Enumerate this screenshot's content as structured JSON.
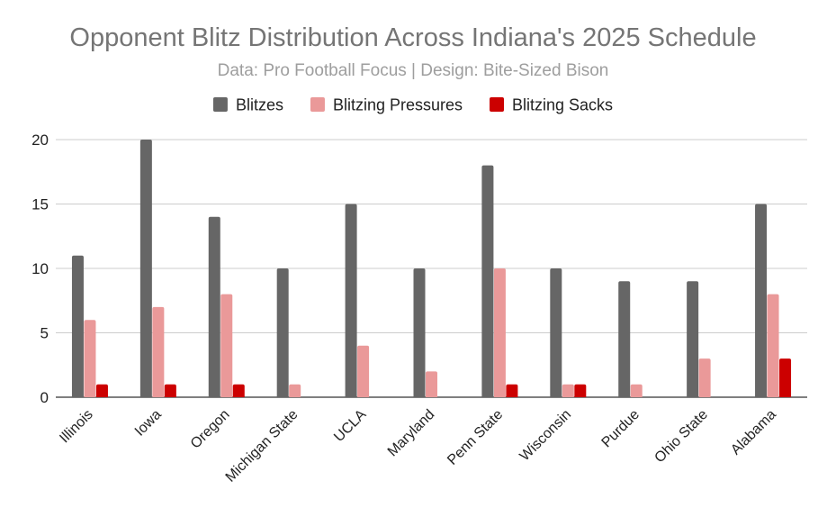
{
  "chart_data": {
    "type": "bar",
    "title": "Opponent Blitz Distribution Across Indiana's 2025 Schedule",
    "subtitle": "Data: Pro Football Focus | Design: Bite-Sized Bison",
    "xlabel": "",
    "ylabel": "",
    "ylim": [
      0,
      20
    ],
    "yticks": [
      0,
      5,
      10,
      15,
      20
    ],
    "grid": true,
    "legend_position": "top-center",
    "categories": [
      "Illinois",
      "Iowa",
      "Oregon",
      "Michigan State",
      "UCLA",
      "Maryland",
      "Penn State",
      "Wisconsin",
      "Purdue",
      "Ohio State",
      "Alabama"
    ],
    "series": [
      {
        "name": "Blitzes",
        "color": "#666666",
        "values": [
          11,
          20,
          14,
          10,
          15,
          10,
          18,
          10,
          9,
          9,
          15
        ]
      },
      {
        "name": "Blitzing Pressures",
        "color": "#ea9999",
        "values": [
          6,
          7,
          8,
          1,
          4,
          2,
          10,
          1,
          1,
          3,
          8
        ]
      },
      {
        "name": "Blitzing Sacks",
        "color": "#cc0000",
        "values": [
          1,
          1,
          1,
          0,
          0,
          0,
          1,
          1,
          0,
          0,
          3
        ]
      }
    ]
  }
}
